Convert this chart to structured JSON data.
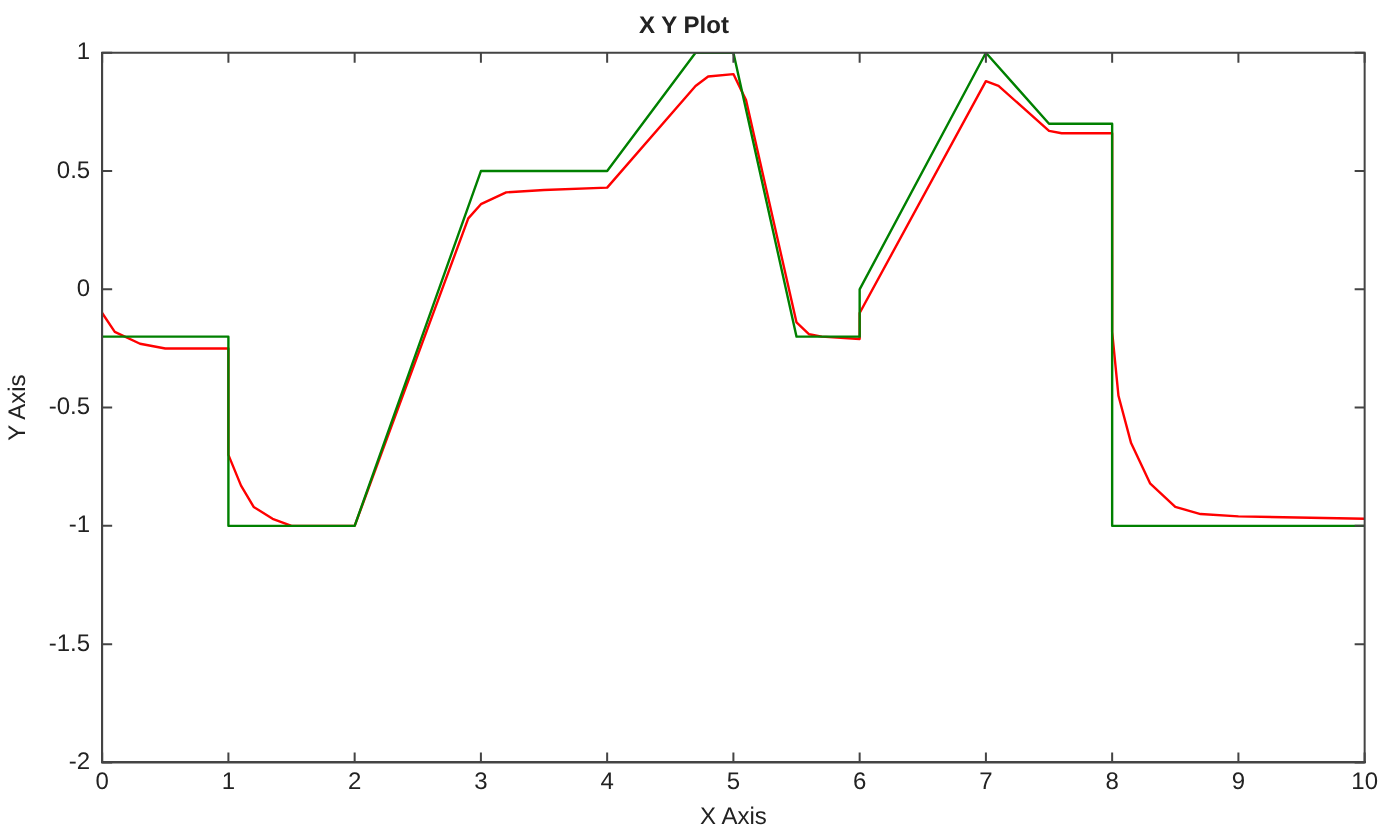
{
  "chart_data": {
    "type": "line",
    "title": "X Y Plot",
    "xlabel": "X Axis",
    "ylabel": "Y Axis",
    "xlim": [
      0,
      10
    ],
    "xticks": [
      0,
      1,
      2,
      3,
      4,
      5,
      6,
      7,
      8,
      9,
      10
    ],
    "ylim": [
      -2,
      1
    ],
    "yticks": [
      -2,
      -1.5,
      -1,
      -0.5,
      0,
      0.5,
      1
    ],
    "grid": false,
    "legend": false,
    "marker": "none",
    "line_style": "solid",
    "series": [
      {
        "color": "#ff0000",
        "x": [
          0,
          0.1,
          0.3,
          0.5,
          1,
          1,
          1.1,
          1.2,
          1.35,
          1.5,
          2,
          2.9,
          3,
          3.2,
          3.5,
          4,
          4.7,
          4.8,
          5,
          5.1,
          5.5,
          5.6,
          5.7,
          6,
          6,
          7,
          7.1,
          7.5,
          7.6,
          8,
          8,
          8.05,
          8.15,
          8.3,
          8.5,
          8.7,
          9,
          10
        ],
        "values": [
          -0.1,
          -0.18,
          -0.23,
          -0.25,
          -0.25,
          -0.7,
          -0.83,
          -0.92,
          -0.97,
          -1,
          -1,
          0.3,
          0.36,
          0.41,
          0.42,
          0.43,
          0.86,
          0.9,
          0.91,
          0.8,
          -0.14,
          -0.19,
          -0.2,
          -0.21,
          -0.1,
          0.88,
          0.86,
          0.67,
          0.66,
          0.66,
          -0.18,
          -0.45,
          -0.65,
          -0.82,
          -0.92,
          -0.95,
          -0.96,
          -0.97
        ]
      },
      {
        "color": "#008000",
        "x": [
          0,
          1,
          1,
          2,
          3,
          4,
          4.7,
          5,
          5.5,
          6,
          6,
          7,
          7.5,
          8,
          8,
          10
        ],
        "values": [
          -0.2,
          -0.2,
          -1,
          -1,
          0.5,
          0.5,
          1,
          1,
          -0.2,
          -0.2,
          0,
          1,
          0.7,
          0.7,
          -1,
          -1
        ]
      }
    ]
  }
}
